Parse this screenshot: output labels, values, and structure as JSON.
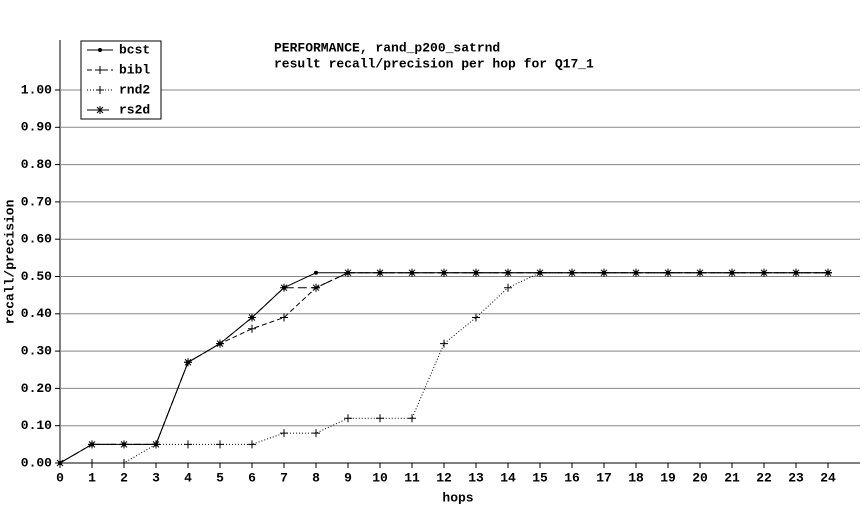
{
  "chart_data": {
    "type": "line",
    "title": "PERFORMANCE, rand_p200_satrnd",
    "subtitle": "result recall/precision per hop for Q17_1",
    "x_label": "hops",
    "y_label": "recall/precision",
    "x": [
      0,
      1,
      2,
      3,
      4,
      5,
      6,
      7,
      8,
      9,
      10,
      11,
      12,
      13,
      14,
      15,
      16,
      17,
      18,
      19,
      20,
      21,
      22,
      23,
      24
    ],
    "series": [
      {
        "name": "bcst",
        "color": "#000000",
        "dash": "solid",
        "marker": "dot",
        "values": [
          0,
          0.05,
          0.05,
          0.05,
          0.27,
          0.32,
          0.39,
          0.47,
          0.51,
          0.51,
          0.51,
          0.51,
          0.51,
          0.51,
          0.51,
          0.51,
          0.51,
          0.51,
          0.51,
          0.51,
          0.51,
          0.51,
          0.51,
          0.51,
          0.51
        ]
      },
      {
        "name": "bibl",
        "color": "#000000",
        "dash": "short",
        "marker": "plus",
        "values": [
          0,
          0.05,
          0.05,
          0.05,
          0.27,
          0.32,
          0.36,
          0.39,
          0.47,
          0.51,
          0.51,
          0.51,
          0.51,
          0.51,
          0.51,
          0.51,
          0.51,
          0.51,
          0.51,
          0.51,
          0.51,
          0.51,
          0.51,
          0.51,
          0.51
        ]
      },
      {
        "name": "rnd2",
        "color": "#000000",
        "dash": "dotted",
        "marker": "plus",
        "values": [
          0,
          0,
          0,
          0.05,
          0.05,
          0.05,
          0.05,
          0.08,
          0.08,
          0.12,
          0.12,
          0.12,
          0.32,
          0.39,
          0.47,
          0.51,
          0.51,
          0.51,
          0.51,
          0.51,
          0.51,
          0.51,
          0.51,
          0.51,
          0.51
        ]
      },
      {
        "name": "rs2d",
        "color": "#000000",
        "dash": "long",
        "marker": "star",
        "values": [
          0,
          0.05,
          0.05,
          0.05,
          0.27,
          0.32,
          0.39,
          0.47,
          0.47,
          0.51,
          0.51,
          0.51,
          0.51,
          0.51,
          0.51,
          0.51,
          0.51,
          0.51,
          0.51,
          0.51,
          0.51,
          0.51,
          0.51,
          0.51,
          0.51
        ]
      }
    ],
    "xlim": [
      0,
      25
    ],
    "ylim": [
      0,
      1.1
    ],
    "xticks": [
      0,
      1,
      2,
      3,
      4,
      5,
      6,
      7,
      8,
      9,
      10,
      11,
      12,
      13,
      14,
      15,
      16,
      17,
      18,
      19,
      20,
      21,
      22,
      23,
      24
    ],
    "yticks": [
      {
        "value": 0,
        "label": "0.00"
      },
      {
        "value": 0.1,
        "label": "0.10"
      },
      {
        "value": 0.2,
        "label": "0.20"
      },
      {
        "value": 0.3,
        "label": "0.30"
      },
      {
        "value": 0.4,
        "label": "0.40"
      },
      {
        "value": 0.5,
        "label": "0.50"
      },
      {
        "value": 0.6,
        "label": "0.60"
      },
      {
        "value": 0.7,
        "label": "0.70"
      },
      {
        "value": 0.8,
        "label": "0.80"
      },
      {
        "value": 0.9,
        "label": "0.90"
      },
      {
        "value": 1,
        "label": "1.00"
      }
    ],
    "grid": true,
    "legend_position": "top-left"
  }
}
